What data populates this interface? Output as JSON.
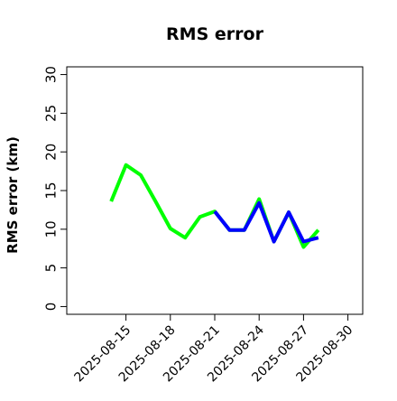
{
  "chart_data": {
    "type": "line",
    "title": "RMS error",
    "xlabel": "",
    "ylabel": "RMS error (km)",
    "ylim": [
      -1,
      31
    ],
    "yticks": [
      0,
      5,
      10,
      15,
      20,
      25,
      30
    ],
    "xlim": [
      "2025-08-11",
      "2025-08-31"
    ],
    "xticks": [
      "2025-08-15",
      "2025-08-18",
      "2025-08-21",
      "2025-08-24",
      "2025-08-27",
      "2025-08-30"
    ],
    "highlight_tick": "2025-08-21",
    "highlight_color": "#228b22",
    "grid": false,
    "series": [
      {
        "color": "#00ff00",
        "x": [
          "2025-08-14",
          "2025-08-15",
          "2025-08-16",
          "2025-08-17",
          "2025-08-18",
          "2025-08-19",
          "2025-08-20",
          "2025-08-21",
          "2025-08-22",
          "2025-08-23",
          "2025-08-24",
          "2025-08-25",
          "2025-08-26",
          "2025-08-27",
          "2025-08-28"
        ],
        "values": [
          13.6,
          18.3,
          17.0,
          13.6,
          10.1,
          8.9,
          11.6,
          12.3,
          9.9,
          9.9,
          13.9,
          8.4,
          12.2,
          7.7,
          9.9
        ]
      },
      {
        "color": "#0000ff",
        "x": [
          "2025-08-21",
          "2025-08-22",
          "2025-08-23",
          "2025-08-24",
          "2025-08-25",
          "2025-08-26",
          "2025-08-27",
          "2025-08-28"
        ],
        "values": [
          12.3,
          9.9,
          9.9,
          13.4,
          8.4,
          12.2,
          8.4,
          8.9
        ]
      }
    ]
  }
}
